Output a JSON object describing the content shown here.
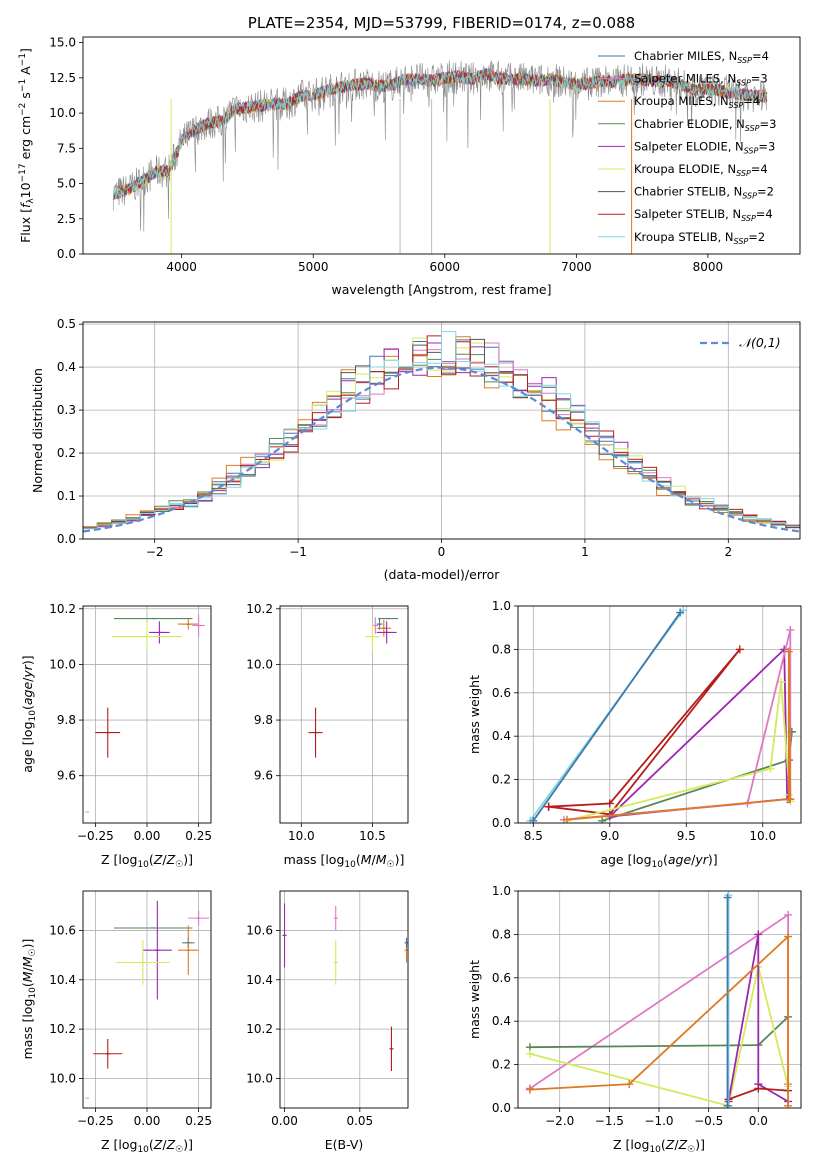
{
  "chart_data": [
    {
      "id": "spectrum",
      "type": "line",
      "title": "PLATE=2354, MJD=53799, FIBERID=0174, z=0.088",
      "xlabel": "wavelength [Angstrom, rest frame]",
      "ylabel": "Flux [f_λ 10^-17 erg cm^-2 s^-1 A^-1]",
      "xlim": [
        3250,
        8700
      ],
      "ylim": [
        0,
        15.4
      ],
      "xticks": [
        "4000",
        "5000",
        "6000",
        "7000",
        "8000"
      ],
      "xtick_values": [
        4000,
        5000,
        6000,
        7000,
        8000
      ],
      "yticks": [
        "0.0",
        "2.5",
        "5.0",
        "7.5",
        "10.0",
        "12.5",
        "15.0"
      ],
      "ytick_values": [
        0,
        2.5,
        5,
        7.5,
        10,
        12.5,
        15
      ],
      "grid": false,
      "legend_position": "right",
      "series": [
        {
          "name": "Chabrier MILES, N_SSP=4",
          "color": "#4477aa"
        },
        {
          "name": "Salpeter MILES, N_SSP=3",
          "color": "#e377c2"
        },
        {
          "name": "Kroupa MILES, N_SSP=4",
          "color": "#dd7a22"
        },
        {
          "name": "Chabrier ELODIE, N_SSP=3",
          "color": "#558855"
        },
        {
          "name": "Salpeter ELODIE, N_SSP=3",
          "color": "#9c27b0"
        },
        {
          "name": "Kroupa ELODIE, N_SSP=4",
          "color": "#d4ea5c"
        },
        {
          "name": "Chabrier STELIB, N_SSP=2",
          "color": "#555555"
        },
        {
          "name": "Salpeter STELIB, N_SSP=4",
          "color": "#b71c1c"
        },
        {
          "name": "Kroupa STELIB, N_SSP=2",
          "color": "#7fd8e6"
        }
      ],
      "data_color": "#888888",
      "continuum_x": [
        3500,
        3600,
        3700,
        3800,
        3900,
        4000,
        4100,
        4200,
        4300,
        4400,
        4500,
        4600,
        4700,
        4800,
        4900,
        5000,
        5100,
        5200,
        5300,
        5400,
        5500,
        5600,
        5700,
        5800,
        5900,
        6000,
        6100,
        6200,
        6300,
        6400,
        6500,
        6600,
        6700,
        6800,
        6900,
        7000,
        7100,
        7200,
        7300,
        7400,
        7500,
        7600,
        7700,
        7800,
        7900,
        8000,
        8100,
        8200,
        8300,
        8400
      ],
      "continuum_y": [
        4.3,
        4.6,
        5.2,
        5.8,
        5.9,
        8.0,
        8.8,
        9.3,
        9.4,
        10.3,
        10.4,
        10.5,
        10.7,
        10.6,
        11.2,
        11.3,
        11.6,
        11.8,
        12.0,
        12.1,
        11.9,
        12.0,
        12.4,
        12.4,
        12.3,
        12.5,
        12.6,
        12.4,
        12.8,
        12.5,
        12.4,
        12.4,
        12.3,
        12.4,
        12.2,
        12.0,
        12.1,
        12.3,
        12.2,
        12.4,
        12.4,
        12.2,
        12.3,
        12.0,
        11.6,
        11.7,
        11.6,
        11.4,
        11.3,
        11.2
      ],
      "spikes": [
        {
          "x": 3920,
          "color": "#d4ea5c"
        },
        {
          "x": 5660,
          "color": "#bbbbbb"
        },
        {
          "x": 5900,
          "color": "#bbbbbb"
        },
        {
          "x": 6800,
          "color": "#d4ea5c"
        },
        {
          "x": 7420,
          "color": "#dd7a22"
        }
      ]
    },
    {
      "id": "residuals",
      "type": "step-histogram",
      "xlabel": "(data-model)/error",
      "ylabel": "Normed distribution",
      "xlim": [
        -2.5,
        2.5
      ],
      "ylim": [
        0,
        0.505
      ],
      "xticks": [
        "−2",
        "−1",
        "0",
        "1",
        "2"
      ],
      "xtick_values": [
        -2,
        -1,
        0,
        1,
        2
      ],
      "yticks": [
        "0.0",
        "0.1",
        "0.2",
        "0.3",
        "0.4",
        "0.5"
      ],
      "ytick_values": [
        0,
        0.1,
        0.2,
        0.3,
        0.4,
        0.5
      ],
      "grid": true,
      "legend": [
        {
          "label": "𝒩(0,1)",
          "style": "dashed",
          "color": "#5b8bd6"
        }
      ],
      "legend_position": "upper right",
      "bin_edges_start": -2.5,
      "bin_width": 0.1,
      "base_values": [
        0.02,
        0.02,
        0.025,
        0.03,
        0.035,
        0.045,
        0.05,
        0.06,
        0.07,
        0.085,
        0.1,
        0.115,
        0.13,
        0.15,
        0.175,
        0.2,
        0.22,
        0.25,
        0.27,
        0.3,
        0.32,
        0.345,
        0.37,
        0.385,
        0.4,
        0.41,
        0.415,
        0.42,
        0.42,
        0.42,
        0.41,
        0.4,
        0.385,
        0.36,
        0.345,
        0.32,
        0.3,
        0.275,
        0.25,
        0.23,
        0.205,
        0.18,
        0.16,
        0.14,
        0.12,
        0.1,
        0.085,
        0.07,
        0.06,
        0.05
      ],
      "series_colors": [
        "#4477aa",
        "#e377c2",
        "#dd7a22",
        "#558855",
        "#9c27b0",
        "#d4ea5c",
        "#555555",
        "#b71c1c",
        "#7fd8e6"
      ]
    },
    {
      "id": "age_vs_Z",
      "type": "errorbar",
      "xlabel": "Z [log10(Z/Z☉)]",
      "ylabel": "age  [log10(age/yr)]",
      "xlim": [
        -0.31,
        0.31
      ],
      "ylim": [
        9.43,
        10.21
      ],
      "xticks": [
        "−0.25",
        "0.00",
        "0.25"
      ],
      "xtick_values": [
        -0.25,
        0,
        0.25
      ],
      "yticks": [
        "9.6",
        "9.8",
        "10.0",
        "10.2"
      ],
      "ytick_values": [
        9.6,
        9.8,
        10.0,
        10.2
      ],
      "grid": true,
      "points": [
        {
          "x": 0.03,
          "y": 10.165,
          "xerr": 0.19,
          "yerr": 0.0,
          "color": "#558855"
        },
        {
          "x": 0.2,
          "y": 10.145,
          "xerr": 0.03,
          "yerr": 0.0,
          "color": "#4477aa"
        },
        {
          "x": 0.2,
          "y": 10.145,
          "xerr": 0.05,
          "yerr": 0.02,
          "color": "#dd7a22"
        },
        {
          "x": 0.25,
          "y": 10.14,
          "xerr": 0.03,
          "yerr": 0.04,
          "color": "#e377c2"
        },
        {
          "x": 0.06,
          "y": 10.115,
          "xerr": 0.05,
          "yerr": 0.04,
          "color": "#9c27b0"
        },
        {
          "x": 0.0,
          "y": 10.1,
          "xerr": 0.17,
          "yerr": 0.05,
          "color": "#d4ea5c"
        },
        {
          "x": -0.19,
          "y": 9.755,
          "xerr": 0.06,
          "yerr": 0.09,
          "color": "#b71c1c"
        },
        {
          "x": -0.29,
          "y": 9.47,
          "xerr": 0.0,
          "yerr": 0.0,
          "color": "#7fd8e6"
        }
      ]
    },
    {
      "id": "age_vs_mass",
      "type": "errorbar",
      "xlabel": "mass [log10(M/M☉)]",
      "ylabel": "",
      "xlim": [
        9.85,
        10.75
      ],
      "ylim": [
        9.43,
        10.21
      ],
      "xticks": [
        "10.0",
        "10.5"
      ],
      "xtick_values": [
        10.0,
        10.5
      ],
      "yticks": [
        "9.6",
        "9.8",
        "10.0",
        "10.2"
      ],
      "ytick_values": [
        9.6,
        9.8,
        10.0,
        10.2
      ],
      "grid": true,
      "points": [
        {
          "x": 10.61,
          "y": 10.165,
          "xerr": 0.07,
          "yerr": 0.0,
          "color": "#558855"
        },
        {
          "x": 10.55,
          "y": 10.145,
          "xerr": 0.02,
          "yerr": 0.02,
          "color": "#4477aa"
        },
        {
          "x": 10.52,
          "y": 10.14,
          "xerr": 0.02,
          "yerr": 0.03,
          "color": "#e377c2"
        },
        {
          "x": 10.58,
          "y": 10.13,
          "xerr": 0.05,
          "yerr": 0.03,
          "color": "#dd7a22"
        },
        {
          "x": 10.6,
          "y": 10.115,
          "xerr": 0.07,
          "yerr": 0.04,
          "color": "#9c27b0"
        },
        {
          "x": 10.5,
          "y": 10.1,
          "xerr": 0.05,
          "yerr": 0.05,
          "color": "#d4ea5c"
        },
        {
          "x": 10.1,
          "y": 9.755,
          "xerr": 0.05,
          "yerr": 0.09,
          "color": "#b71c1c"
        }
      ]
    },
    {
      "id": "massweight_vs_age",
      "type": "line",
      "xlabel": "age  [log10(age/yr)]",
      "ylabel": "mass weight",
      "xlim": [
        8.4,
        10.25
      ],
      "ylim": [
        0,
        1.0
      ],
      "xticks": [
        "8.5",
        "9.0",
        "9.5",
        "10.0"
      ],
      "xtick_values": [
        8.5,
        9.0,
        9.5,
        10.0
      ],
      "yticks": [
        "0.0",
        "0.2",
        "0.4",
        "0.6",
        "0.8",
        "1.0"
      ],
      "ytick_values": [
        0,
        0.2,
        0.4,
        0.6,
        0.8,
        1.0
      ],
      "grid": true,
      "series": [
        {
          "color": "#7fd8e6",
          "x": [
            8.48,
            9.48
          ],
          "y": [
            0.01,
            0.98
          ]
        },
        {
          "color": "#4477aa",
          "x": [
            8.5,
            9.46
          ],
          "y": [
            0.01,
            0.97
          ]
        },
        {
          "color": "#555555",
          "x": [
            10.17,
            10.19
          ],
          "y": [
            0.29,
            0.42
          ]
        },
        {
          "color": "#558855",
          "x": [
            8.95,
            10.17,
            10.19
          ],
          "y": [
            0.01,
            0.29,
            0.42
          ]
        },
        {
          "color": "#b71c1c",
          "x": [
            8.6,
            9.0,
            9.85,
            9.0,
            8.6
          ],
          "y": [
            0.075,
            0.09,
            0.8,
            0.04,
            0.075
          ]
        },
        {
          "color": "#9c27b0",
          "x": [
            9.0,
            10.14,
            10.16,
            9.0
          ],
          "y": [
            0.03,
            0.8,
            0.11,
            0.03
          ]
        },
        {
          "color": "#d4ea5c",
          "x": [
            8.72,
            10.05,
            10.12,
            10.18,
            10.17
          ],
          "y": [
            0.01,
            0.25,
            0.65,
            0.1,
            0.13
          ]
        },
        {
          "color": "#e377c2",
          "x": [
            8.7,
            9.9,
            10.18,
            10.18
          ],
          "y": [
            0.015,
            0.09,
            0.89,
            0.11
          ]
        },
        {
          "color": "#dd7a22",
          "x": [
            8.72,
            10.17,
            10.17,
            10.18
          ],
          "y": [
            0.015,
            0.11,
            0.79,
            0.11
          ]
        }
      ]
    },
    {
      "id": "mass_vs_Z",
      "type": "errorbar",
      "xlabel": "Z [log10(Z/Z☉)]",
      "ylabel": "mass [log10(M/M☉)]",
      "xlim": [
        -0.31,
        0.31
      ],
      "ylim": [
        9.88,
        10.76
      ],
      "xticks": [
        "−0.25",
        "0.00",
        "0.25"
      ],
      "xtick_values": [
        -0.25,
        0,
        0.25
      ],
      "yticks": [
        "10.0",
        "10.2",
        "10.4",
        "10.6"
      ],
      "ytick_values": [
        10.0,
        10.2,
        10.4,
        10.6
      ],
      "grid": true,
      "points": [
        {
          "x": 0.03,
          "y": 10.61,
          "xerr": 0.19,
          "yerr": 0.0,
          "color": "#558855"
        },
        {
          "x": 0.25,
          "y": 10.65,
          "xerr": 0.05,
          "yerr": 0.03,
          "color": "#e377c2"
        },
        {
          "x": 0.05,
          "y": 10.52,
          "xerr": 0.07,
          "yerr": 0.2,
          "color": "#9c27b0"
        },
        {
          "x": 0.2,
          "y": 10.55,
          "xerr": 0.03,
          "yerr": 0.02,
          "color": "#4477aa"
        },
        {
          "x": 0.2,
          "y": 10.52,
          "xerr": 0.05,
          "yerr": 0.1,
          "color": "#dd7a22"
        },
        {
          "x": -0.02,
          "y": 10.47,
          "xerr": 0.13,
          "yerr": 0.09,
          "color": "#d4ea5c"
        },
        {
          "x": -0.19,
          "y": 10.1,
          "xerr": 0.07,
          "yerr": 0.06,
          "color": "#b71c1c"
        },
        {
          "x": -0.29,
          "y": 9.92,
          "xerr": 0.0,
          "yerr": 0.0,
          "color": "#7fd8e6"
        }
      ]
    },
    {
      "id": "mass_vs_EBV",
      "type": "errorbar",
      "xlabel": "E(B-V)",
      "ylabel": "",
      "xlim": [
        -0.003,
        0.082
      ],
      "ylim": [
        9.88,
        10.76
      ],
      "xticks": [
        "0.00",
        "0.05"
      ],
      "xtick_values": [
        0,
        0.05
      ],
      "yticks": [
        "10.0",
        "10.2",
        "10.4",
        "10.6"
      ],
      "ytick_values": [
        10.0,
        10.2,
        10.4,
        10.6
      ],
      "grid": true,
      "points": [
        {
          "x": 0.0,
          "y": 10.58,
          "xerr": 0,
          "yerr": 0.13,
          "color": "#9c27b0"
        },
        {
          "x": 0.034,
          "y": 10.65,
          "xerr": 0,
          "yerr": 0.05,
          "color": "#e377c2"
        },
        {
          "x": 0.034,
          "y": 10.47,
          "xerr": 0,
          "yerr": 0.09,
          "color": "#d4ea5c"
        },
        {
          "x": 0.071,
          "y": 10.12,
          "xerr": 0,
          "yerr": 0.09,
          "color": "#b71c1c"
        },
        {
          "x": 0.081,
          "y": 10.52,
          "xerr": 0,
          "yerr": 0.05,
          "color": "#dd7a22"
        },
        {
          "x": 0.081,
          "y": 10.55,
          "xerr": 0,
          "yerr": 0.02,
          "color": "#4477aa"
        }
      ]
    },
    {
      "id": "massweight_vs_Z",
      "type": "line",
      "xlabel": "Z [log10(Z/Z☉)]",
      "ylabel": "mass weight",
      "xlim": [
        -2.42,
        0.43
      ],
      "ylim": [
        0,
        1.0
      ],
      "xticks": [
        "−2.0",
        "−1.5",
        "−1.0",
        "−0.5",
        "0.0"
      ],
      "xtick_values": [
        -2.0,
        -1.5,
        -1.0,
        -0.5,
        0.0
      ],
      "yticks": [
        "0.0",
        "0.2",
        "0.4",
        "0.6",
        "0.8",
        "1.0"
      ],
      "ytick_values": [
        0,
        0.2,
        0.4,
        0.6,
        0.8,
        1.0
      ],
      "grid": true,
      "series": [
        {
          "color": "#e377c2",
          "x": [
            -2.3,
            0.3,
            0.3
          ],
          "y": [
            0.09,
            0.89,
            0.11
          ]
        },
        {
          "color": "#558855",
          "x": [
            -2.3,
            0.0,
            0.3
          ],
          "y": [
            0.28,
            0.29,
            0.42
          ]
        },
        {
          "color": "#d4ea5c",
          "x": [
            -2.3,
            -0.3,
            0.0,
            0.3
          ],
          "y": [
            0.25,
            0.01,
            0.65,
            0.1
          ]
        },
        {
          "color": "#9c27b0",
          "x": [
            -0.3,
            0.0,
            0.0,
            0.3
          ],
          "y": [
            0.03,
            0.8,
            0.11,
            0.03
          ]
        },
        {
          "color": "#b71c1c",
          "x": [
            -0.3,
            0.0,
            0.3
          ],
          "y": [
            0.04,
            0.09,
            0.08
          ]
        },
        {
          "color": "#7fd8e6",
          "x": [
            -0.3,
            -0.3
          ],
          "y": [
            0.01,
            0.98
          ]
        },
        {
          "color": "#4477aa",
          "x": [
            -0.31,
            -0.31
          ],
          "y": [
            0.01,
            0.97
          ]
        },
        {
          "color": "#dd7a22",
          "x": [
            -2.3,
            -1.3,
            0.3,
            0.3
          ],
          "y": [
            0.085,
            0.11,
            0.79,
            0.01
          ]
        }
      ]
    }
  ]
}
